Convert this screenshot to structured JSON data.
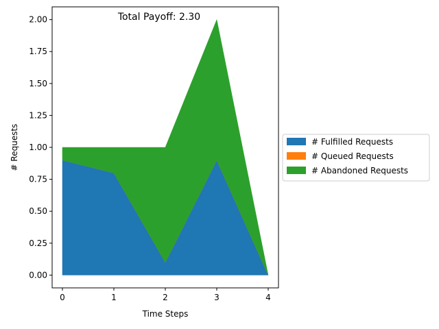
{
  "chart_data": {
    "type": "area",
    "stacked": true,
    "title": "Total Payoff: 2.30",
    "xlabel": "Time Steps",
    "ylabel": "# Requests",
    "x": [
      0,
      1,
      2,
      3,
      4
    ],
    "xticks": [
      "0",
      "1",
      "2",
      "3",
      "4"
    ],
    "yticks": [
      "0.00",
      "0.25",
      "0.50",
      "0.75",
      "1.00",
      "1.25",
      "1.50",
      "1.75",
      "2.00"
    ],
    "xlim": [
      -0.2,
      4.2
    ],
    "ylim": [
      -0.1,
      2.1
    ],
    "grid": false,
    "legend_placement": "center-right outside",
    "series": [
      {
        "name": "# Fulfilled Requests",
        "values": [
          0.9,
          0.8,
          0.1,
          0.9,
          0.0
        ],
        "color": "#1f77b4"
      },
      {
        "name": "# Queued Requests",
        "values": [
          0.0,
          0.0,
          0.0,
          0.0,
          0.0
        ],
        "color": "#ff7f0e"
      },
      {
        "name": "# Abandoned Requests",
        "values": [
          0.1,
          0.2,
          0.9,
          1.1,
          0.0
        ],
        "color": "#2ca02c"
      }
    ]
  }
}
